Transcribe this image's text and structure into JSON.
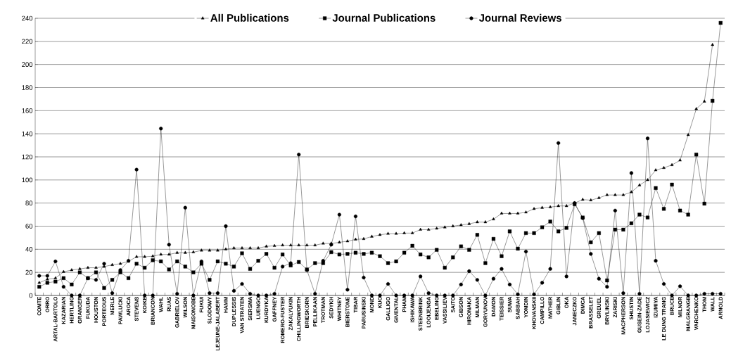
{
  "chart_data": {
    "type": "line",
    "categories": [
      "COMTE",
      "ORRO",
      "ARTAL-BARTOLO",
      "KAZARIAN",
      "HERTLING",
      "GRANGER",
      "FUKUDA",
      "HOUSTON",
      "PORTEOUS",
      "MERLE",
      "PAWLUCKI",
      "AROCA",
      "STEVENS",
      "KOIKE",
      "BRIANCON",
      "WAHL",
      "RUAS",
      "GABRIELOV",
      "WILSON",
      "MAISONOBE",
      "FUKUI",
      "SLODOWY",
      "LEJEUNE-JALABERT",
      "HAMM",
      "DUPLESSIS",
      "VAN STRATEN",
      "SIERSMA",
      "LUENGO",
      "KURDYKA",
      "GAFFNEY",
      "ROMERO-FUSTER",
      "ZAKALYUKIN",
      "CHILLINGWORTH",
      "BRIESKORN",
      "PELLIKAAN",
      "TROTMAN",
      "SEDYKH",
      "WHITNEY",
      "BIERSTONE",
      "TIBAR",
      "PARUSINSKI",
      "MOND",
      "KUO",
      "GALLIGO",
      "GIVENTAL",
      "PHAM",
      "ISHIKAWA",
      "STEENBRINK",
      "LOOIJENGA",
      "EBELING",
      "VASSILIEV",
      "SAITO",
      "GIBSON",
      "HIRONAKA",
      "MILMAN",
      "GORYUNOV",
      "DAMON",
      "TEISSIER",
      "SUWA",
      "SABBAH",
      "YOMDIN",
      "KHOVANSKII",
      "CAMPILLO",
      "MATHER",
      "GIBLIN",
      "OKA",
      "JANECZKO",
      "DIMCA",
      "BRASSELET",
      "GREUEL",
      "BRYLINSKI",
      "ZARISKI",
      "MACPHERSON",
      "SHUSTIN",
      "GUSEIN-ZADE",
      "LOJASIEWICZ",
      "IZUMIYA",
      "LE DUNG TRANG",
      "BRUCE",
      "MILNOR",
      "MALGRANGE",
      "VARCHENKO",
      "THOM",
      "WALL",
      "ARNOLD"
    ],
    "series": [
      {
        "name": "All Publications",
        "color": "#000000",
        "marker": "triangle",
        "values": [
          11,
          14,
          15,
          20.5,
          22,
          23,
          24,
          24,
          25,
          26.5,
          27.5,
          29.5,
          33.5,
          33.5,
          34,
          35.5,
          35.5,
          37,
          37,
          37.5,
          39,
          39,
          39,
          40,
          41,
          41,
          41,
          41,
          42.5,
          43,
          43.5,
          43.5,
          43.5,
          43.5,
          43.5,
          45,
          45,
          46,
          47,
          48.5,
          49,
          51,
          52.5,
          53.5,
          53.5,
          54,
          54,
          57,
          57,
          58,
          59,
          60,
          61,
          62,
          63.5,
          63.5,
          66,
          71,
          71,
          71,
          72,
          75,
          76,
          76.5,
          77.5,
          77.5,
          80,
          83,
          82.5,
          84.5,
          87,
          87,
          87,
          89.5,
          95.5,
          100,
          108.5,
          110.5,
          113,
          117,
          139,
          161.5,
          168,
          217,
          null
        ]
      },
      {
        "name": "Journal Publications",
        "color": "#000000",
        "marker": "square",
        "values": [
          7.5,
          11,
          12,
          15,
          9.5,
          20,
          15,
          20,
          6.5,
          13.5,
          20,
          15,
          27.5,
          24,
          30.5,
          29.5,
          22.5,
          29.5,
          25,
          20,
          27.5,
          13.5,
          29.5,
          27.5,
          25,
          36.5,
          23,
          30,
          36,
          24,
          35.5,
          26,
          29,
          22.5,
          28,
          28,
          37.5,
          35.5,
          36,
          37,
          36,
          37,
          34,
          28,
          29.5,
          37,
          43,
          35.5,
          33,
          39.5,
          24,
          33,
          42.5,
          39.5,
          52.5,
          28,
          49,
          34,
          55.5,
          40.5,
          54,
          54,
          59,
          64,
          55.5,
          58.5,
          79,
          67.5,
          46,
          54,
          13,
          57,
          57,
          62.5,
          70,
          67.5,
          93,
          75,
          96,
          73.5,
          70,
          122,
          79.5,
          168.5,
          236
        ]
      },
      {
        "name": "Journal Reviews",
        "color": "#000000",
        "marker": "circle",
        "values": [
          17,
          17,
          29.5,
          7.5,
          0,
          0,
          15,
          13.5,
          27.5,
          2,
          22,
          30,
          109,
          0,
          0,
          144.5,
          44,
          1.5,
          76,
          0,
          29.5,
          2,
          2,
          60,
          4,
          10,
          1.5,
          0,
          0,
          1.5,
          25,
          28,
          122,
          22,
          1.5,
          30,
          44,
          70,
          5,
          68.5,
          15.5,
          0,
          0,
          10,
          0,
          0,
          0,
          16.5,
          2,
          0,
          0,
          0,
          9.5,
          21,
          13.5,
          0,
          14.5,
          23,
          9.5,
          1,
          38,
          1,
          11,
          23,
          132,
          16.5,
          80,
          67,
          36,
          14.5,
          7.5,
          73.5,
          2,
          106,
          1.5,
          136,
          30,
          10,
          0,
          8,
          0,
          0,
          1.5,
          1.5,
          1.5
        ]
      }
    ],
    "ylim": [
      0,
      240
    ],
    "yticks": [
      0,
      20,
      40,
      60,
      80,
      100,
      120,
      140,
      160,
      180,
      200,
      220,
      240
    ],
    "grid": "y",
    "legend": "top"
  }
}
